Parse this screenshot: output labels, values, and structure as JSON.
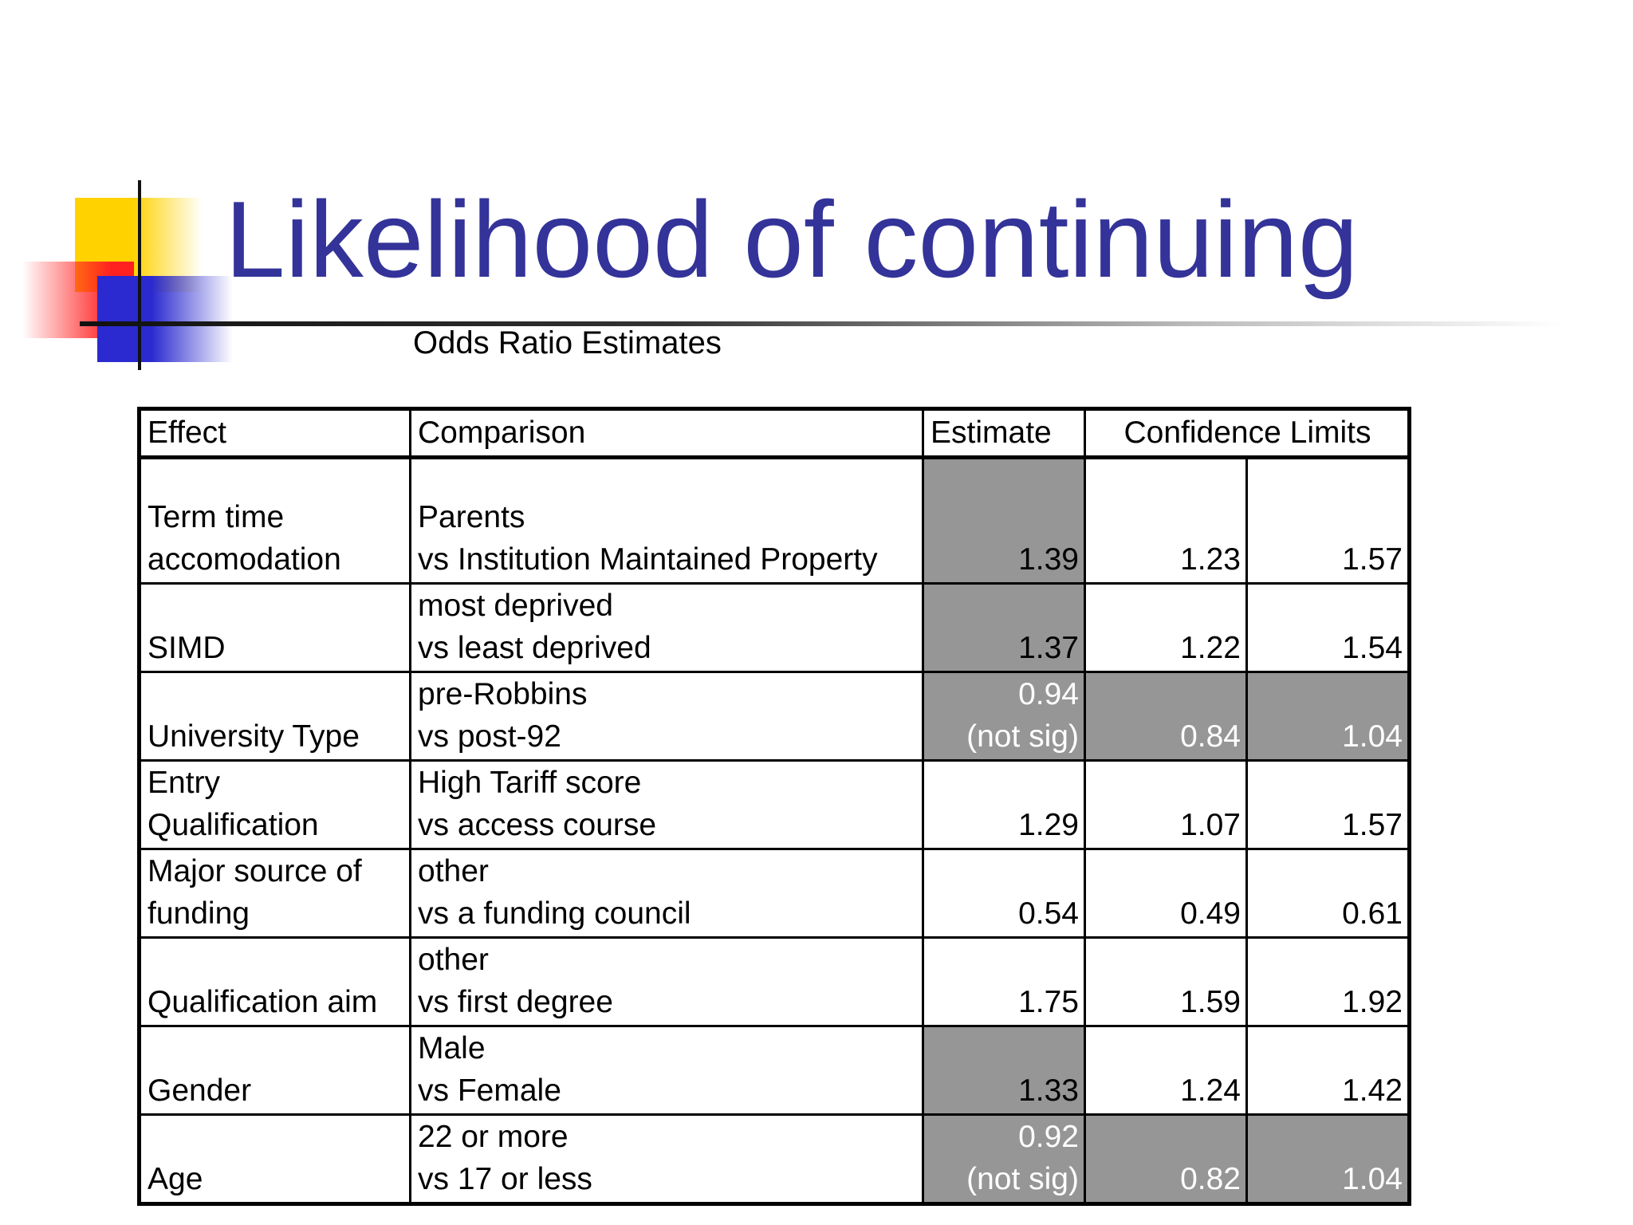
{
  "title": "Likelihood of continuing",
  "subtitle": "Odds Ratio Estimates",
  "table": {
    "headers": {
      "effect": "Effect",
      "comparison": "Comparison",
      "estimate": "Estimate",
      "confidence": "Confidence Limits"
    },
    "rows": [
      {
        "effect": [
          "Term time",
          "accomodation"
        ],
        "comparison": [
          "Parents",
          "vs Institution Maintained Property"
        ],
        "estimate": [
          "",
          "1.39"
        ],
        "lower": "1.23",
        "upper": "1.57",
        "estimate_shaded": true,
        "limits_shaded": false
      },
      {
        "effect": [
          "",
          "SIMD"
        ],
        "comparison": [
          "most deprived",
          "vs least deprived"
        ],
        "estimate": [
          "",
          "1.37"
        ],
        "lower": "1.22",
        "upper": "1.54",
        "estimate_shaded": true,
        "limits_shaded": false
      },
      {
        "effect": [
          "",
          "University Type"
        ],
        "comparison": [
          "pre-Robbins",
          "vs post-92"
        ],
        "estimate": [
          "0.94",
          "(not sig)"
        ],
        "lower": "0.84",
        "upper": "1.04",
        "estimate_shaded": true,
        "limits_shaded": true
      },
      {
        "effect": [
          "Entry",
          "Qualification"
        ],
        "comparison": [
          "High Tariff score",
          "vs access course"
        ],
        "estimate": [
          "",
          "1.29"
        ],
        "lower": "1.07",
        "upper": "1.57",
        "estimate_shaded": false,
        "limits_shaded": false
      },
      {
        "effect": [
          "Major source of",
          "funding"
        ],
        "comparison": [
          "other",
          "vs a funding council"
        ],
        "estimate": [
          "",
          "0.54"
        ],
        "lower": "0.49",
        "upper": "0.61",
        "estimate_shaded": false,
        "limits_shaded": false
      },
      {
        "effect": [
          "",
          "Qualification aim"
        ],
        "comparison": [
          "other",
          "vs first degree"
        ],
        "estimate": [
          "",
          "1.75"
        ],
        "lower": "1.59",
        "upper": "1.92",
        "estimate_shaded": false,
        "limits_shaded": false
      },
      {
        "effect": [
          "",
          "Gender"
        ],
        "comparison": [
          "Male",
          "vs Female"
        ],
        "estimate": [
          "",
          "1.33"
        ],
        "lower": "1.24",
        "upper": "1.42",
        "estimate_shaded": true,
        "limits_shaded": false
      },
      {
        "effect": [
          "",
          "Age"
        ],
        "comparison": [
          "22 or more",
          "vs 17 or less"
        ],
        "estimate": [
          "0.92",
          "(not sig)"
        ],
        "lower": "0.82",
        "upper": "1.04",
        "estimate_shaded": true,
        "limits_shaded": true
      }
    ]
  }
}
